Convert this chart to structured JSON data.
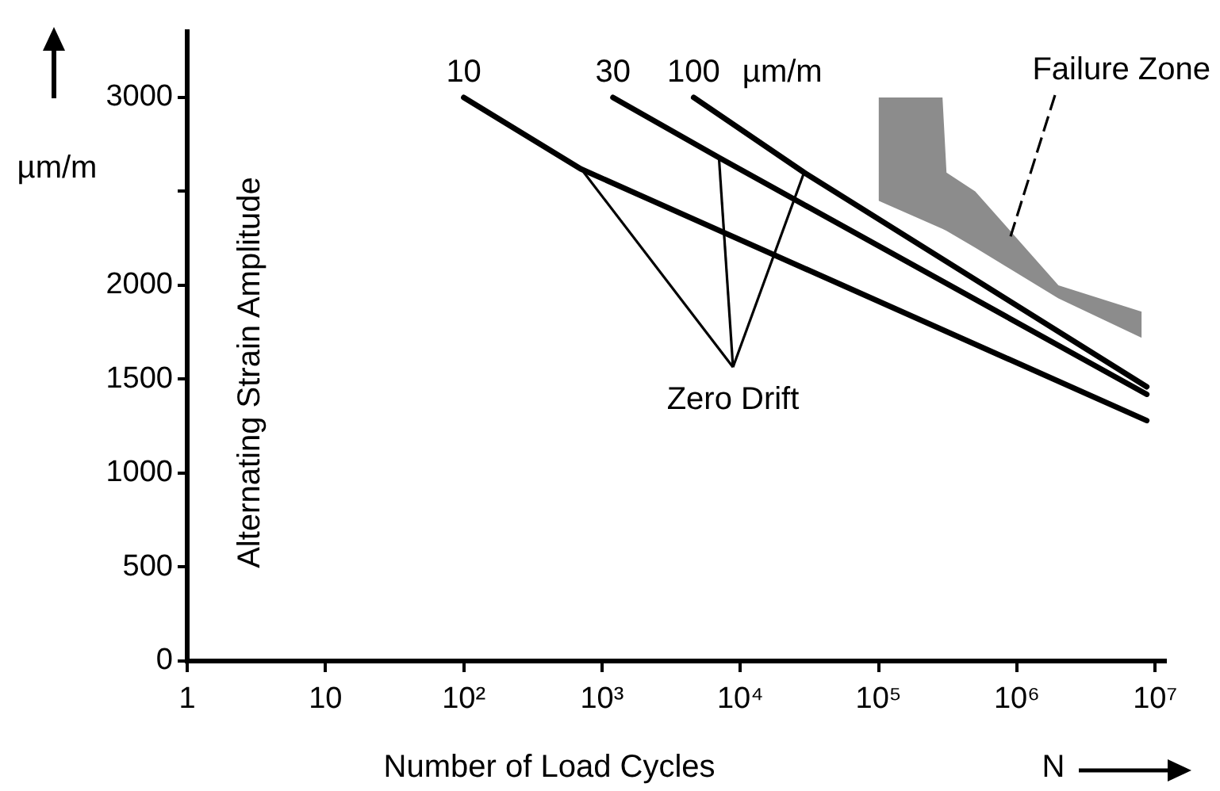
{
  "chart_data": {
    "type": "line",
    "xlabel": "Number of Load Cycles",
    "ylabel": "Alternating Strain Amplitude",
    "log": "x",
    "marker": "none",
    "line_style": "solid",
    "xlim": [
      1,
      12000000
    ],
    "xticks": [
      1,
      10,
      {
        "value": 100,
        "label": "10²"
      },
      {
        "value": 1000,
        "label": "10³"
      },
      {
        "value": 10000,
        "label": "10⁴"
      },
      {
        "value": 100000,
        "label": "10⁵"
      },
      {
        "value": 1000000,
        "label": "10⁶"
      },
      {
        "value": 10000000,
        "label": "10⁷"
      }
    ],
    "ylim": [
      0,
      3350
    ],
    "yticks": [
      0,
      500,
      1000,
      1500,
      2000,
      {
        "value": 2500,
        "label": null
      },
      3000
    ],
    "series": [
      {
        "name": "10",
        "color": "#000000",
        "x": [
          100,
          700,
          8700000
        ],
        "values": [
          3000,
          2620,
          1280
        ]
      },
      {
        "name": "30",
        "color": "#000000",
        "x": [
          1200,
          7000,
          8700000
        ],
        "values": [
          3000,
          2680,
          1420
        ]
      },
      {
        "name": "100",
        "color": "#000000",
        "x": [
          4600,
          29000,
          8700000
        ],
        "values": [
          3000,
          2600,
          1460
        ]
      },
      {
        "type": "area",
        "color": "#000000",
        "x": [
          100000,
          290000,
          310000,
          500000,
          2000000,
          8000000
        ],
        "values": [
          null,
          null,
          null,
          null,
          null,
          null
        ],
        "lower": [
          2450,
          2300,
          2290,
          2200,
          1930,
          1720
        ],
        "upper": [
          3000,
          3000,
          2600,
          2500,
          2000,
          1860
        ]
      }
    ],
    "annotations": [
      {
        "text": "Zero Drift",
        "x": 700,
        "y": 2620
      },
      "µm/m",
      "µm/m",
      "N",
      {
        "text": "Failure Zone",
        "x": 900000,
        "y": 2260
      }
    ]
  }
}
